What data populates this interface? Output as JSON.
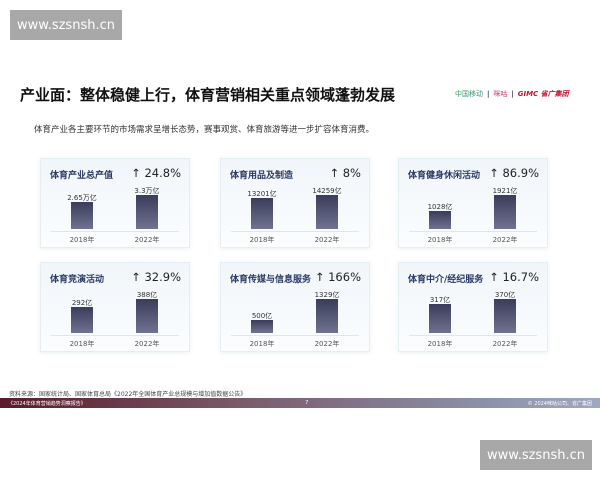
{
  "watermark": "www.szsnsh.cn",
  "title": "产业面：整体稳健上行，体育营销相关重点领域蓬勃发展",
  "logos": {
    "china_mobile": "中国移动",
    "migu": "咪咕",
    "gimc": "GIMC 省广集团"
  },
  "subtitle": "体育产业各主要环节的市场需求呈增长态势，赛事观赏、体育旅游等进一步扩容体育消费。",
  "colors": {
    "bar": "#4a4d6a",
    "card_title": "#2a3a66"
  },
  "chart_data": [
    {
      "type": "bar",
      "title": "体育产业总产值",
      "growth": "↑ 24.8%",
      "categories": [
        "2018年",
        "2022年"
      ],
      "values": [
        2.65,
        3.3
      ],
      "labels": [
        "2.65万亿",
        "3.3万亿"
      ]
    },
    {
      "type": "bar",
      "title": "体育用品及制造",
      "growth": "↑ 8%",
      "categories": [
        "2018年",
        "2022年"
      ],
      "values": [
        13201,
        14259
      ],
      "labels": [
        "13201亿",
        "14259亿"
      ]
    },
    {
      "type": "bar",
      "title": "体育健身休闲活动",
      "growth": "↑ 86.9%",
      "categories": [
        "2018年",
        "2022年"
      ],
      "values": [
        1028,
        1921
      ],
      "labels": [
        "1028亿",
        "1921亿"
      ]
    },
    {
      "type": "bar",
      "title": "体育竞演活动",
      "growth": "↑ 32.9%",
      "categories": [
        "2018年",
        "2022年"
      ],
      "values": [
        292,
        388
      ],
      "labels": [
        "292亿",
        "388亿"
      ]
    },
    {
      "type": "bar",
      "title": "体育传媒与信息服务",
      "growth": "↑ 166%",
      "categories": [
        "2018年",
        "2022年"
      ],
      "values": [
        500,
        1329
      ],
      "labels": [
        "500亿",
        "1329亿"
      ]
    },
    {
      "type": "bar",
      "title": "体育中介/经纪服务",
      "growth": "↑ 16.7%",
      "categories": [
        "2018年",
        "2022年"
      ],
      "values": [
        317,
        370
      ],
      "labels": [
        "317亿",
        "370亿"
      ]
    }
  ],
  "source": "资料来源：国家统计局、国家体育总局《2022年全国体育产业总规模与增加值数据公告》",
  "footer": {
    "report": "《2024年体育营销趋势洞察报告》",
    "page": "7",
    "copyright": "© 2024咪咕公司、省广集团"
  }
}
